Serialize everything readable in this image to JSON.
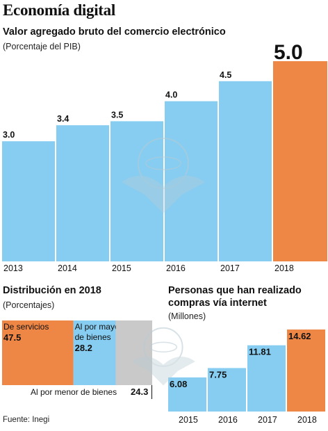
{
  "title": "Economía digital",
  "source": "Fuente: Inegi",
  "colors": {
    "blue": "#86cdf1",
    "orange": "#ee8645",
    "gray": "#c9c9c9",
    "watermark": "#b7cad3"
  },
  "watermark_icon": "eagle-seal-icon",
  "chart_data": [
    {
      "type": "bar",
      "title": "Valor agregado bruto del comercio electrónico",
      "subtitle": "(Porcentaje del PIB)",
      "categories": [
        "2013",
        "2014",
        "2015",
        "2016",
        "2017",
        "2018"
      ],
      "values": [
        3.0,
        3.4,
        3.5,
        4.0,
        4.5,
        5.0
      ],
      "labels": [
        "3.0",
        "3.4",
        "3.5",
        "4.0",
        "4.5",
        "5.0"
      ],
      "highlight": "2018",
      "ylim": [
        0,
        5.0
      ]
    },
    {
      "type": "treemap",
      "title": "Distribución en 2018",
      "subtitle": "(Porcentajes)",
      "segments": [
        {
          "name": "De  servicios",
          "value": 47.5,
          "label": "47.5"
        },
        {
          "name": "Al por mayor de bienes",
          "name_lines": [
            "Al por mayor",
            "de bienes"
          ],
          "value": 28.2,
          "label": "28.2"
        },
        {
          "name": "Al por menor de bienes",
          "value": 24.3,
          "label": "24.3"
        }
      ]
    },
    {
      "type": "bar",
      "title": "Personas que han realizado compras vía internet",
      "title_lines": [
        "Personas que han realizado",
        "compras vía internet"
      ],
      "subtitle": "(Millones)",
      "categories": [
        "2015",
        "2016",
        "2017",
        "2018"
      ],
      "values": [
        6.08,
        7.75,
        11.81,
        14.62
      ],
      "labels": [
        "6.08",
        "7.75",
        "11.81",
        "14.62"
      ],
      "highlight": "2018",
      "ylim": [
        0,
        14.62
      ]
    }
  ]
}
